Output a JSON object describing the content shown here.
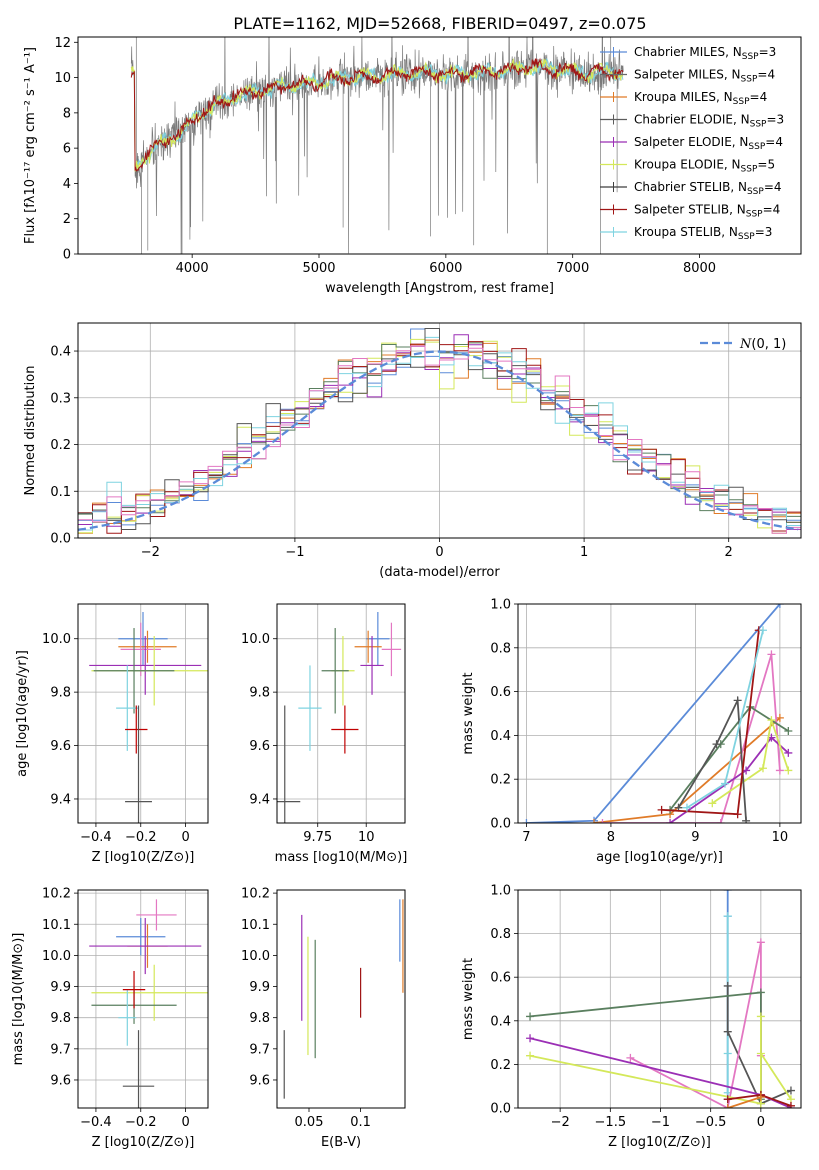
{
  "figure": {
    "title": "PLATE=1162, MJD=52668, FIBERID=0497, z=0.075"
  },
  "colors": {
    "fits": [
      "#5b8bd8",
      "#6a6a6a",
      "#e07b28",
      "#5c5c5c",
      "#9b2fb5",
      "#d4e85a",
      "#3f3f3f",
      "#a01616",
      "#7fd3e0"
    ]
  },
  "chart_data": [
    {
      "id": "spectrum",
      "type": "line",
      "title": "PLATE=1162, MJD=52668, FIBERID=0497, z=0.075",
      "xlabel": "wavelength [Angstrom, rest frame]",
      "ylabel": "Flux [fλ10⁻¹⁷ erg cm⁻² s⁻¹ A⁻¹]",
      "xlim": [
        3100,
        8800
      ],
      "ylim": [
        0,
        12.3
      ],
      "xticks": [
        4000,
        5000,
        6000,
        7000,
        8000
      ],
      "yticks": [
        0,
        2,
        4,
        6,
        8,
        10,
        12
      ],
      "grid": false,
      "legend_position": "top-right",
      "observed_range": [
        3520,
        7400
      ],
      "continuum": [
        [
          3550,
          4.8
        ],
        [
          3600,
          5.3
        ],
        [
          3700,
          6.0
        ],
        [
          3800,
          6.5
        ],
        [
          3900,
          6.8
        ],
        [
          4000,
          7.6
        ],
        [
          4100,
          8.1
        ],
        [
          4200,
          8.5
        ],
        [
          4300,
          8.8
        ],
        [
          4500,
          9.2
        ],
        [
          4700,
          9.5
        ],
        [
          5000,
          9.7
        ],
        [
          5200,
          10.0
        ],
        [
          5500,
          10.1
        ],
        [
          5800,
          10.3
        ],
        [
          6000,
          10.2
        ],
        [
          6300,
          10.3
        ],
        [
          6500,
          10.4
        ],
        [
          6600,
          10.6
        ],
        [
          6800,
          10.5
        ],
        [
          7000,
          10.4
        ],
        [
          7100,
          10.1
        ],
        [
          7200,
          10.4
        ],
        [
          7400,
          10.2
        ]
      ],
      "series": [
        {
          "name": "Chabrier MILES, N_SSP=3"
        },
        {
          "name": "Salpeter MILES, N_SSP=4"
        },
        {
          "name": "Kroupa MILES, N_SSP=4"
        },
        {
          "name": "Chabrier ELODIE, N_SSP=3"
        },
        {
          "name": "Salpeter ELODIE, N_SSP=4"
        },
        {
          "name": "Kroupa ELODIE, N_SSP=5"
        },
        {
          "name": "Chabrier STELIB, N_SSP=4"
        },
        {
          "name": "Salpeter STELIB, N_SSP=4"
        },
        {
          "name": "Kroupa STELIB, N_SSP=3"
        }
      ]
    },
    {
      "id": "residuals",
      "type": "step",
      "xlabel": "(data-model)/error",
      "ylabel": "Normed distribution",
      "xlim": [
        -2.5,
        2.5
      ],
      "ylim": [
        0,
        0.46
      ],
      "xticks": [
        -2,
        -1,
        0,
        1,
        2
      ],
      "yticks": [
        0.0,
        0.1,
        0.2,
        0.3,
        0.4
      ],
      "grid": true,
      "legend_position": "top-right",
      "reference_curve": {
        "name": "N(0,1)",
        "mean": 0,
        "sigma": 1
      }
    },
    {
      "id": "age-vs-Z",
      "type": "errorbar",
      "xlabel": "Z [log10(Z/Z⊙)]",
      "ylabel": "age  [log10(age/yr)]",
      "xlim": [
        -0.48,
        0.1
      ],
      "ylim": [
        9.31,
        10.13
      ],
      "xticks": [
        -0.4,
        -0.2,
        0.0
      ],
      "yticks": [
        9.4,
        9.6,
        9.8,
        10.0
      ],
      "grid": true,
      "points": [
        {
          "x": -0.19,
          "y": 10.0,
          "xerr": 0.11,
          "yerr": 0.1,
          "color": "#5b8bd8"
        },
        {
          "x": -0.17,
          "y": 9.97,
          "xerr": 0.13,
          "yerr": 0.06,
          "color": "#e07b28"
        },
        {
          "x": -0.2,
          "y": 9.96,
          "xerr": 0.09,
          "yerr": 0.1,
          "color": "#e377c2"
        },
        {
          "x": -0.18,
          "y": 9.9,
          "xerr": 0.25,
          "yerr": 0.11,
          "color": "#9b2fb5"
        },
        {
          "x": -0.14,
          "y": 9.88,
          "xerr": 0.28,
          "yerr": 0.13,
          "color": "#d4e85a"
        },
        {
          "x": -0.23,
          "y": 9.88,
          "xerr": 0.18,
          "yerr": 0.16,
          "color": "#5a7f5f"
        },
        {
          "x": -0.26,
          "y": 9.74,
          "xerr": 0.05,
          "yerr": 0.16,
          "color": "#7fd3e0"
        },
        {
          "x": -0.22,
          "y": 9.66,
          "xerr": 0.05,
          "yerr": 0.09,
          "color": "#c00000"
        },
        {
          "x": -0.21,
          "y": 9.39,
          "xerr": 0.06,
          "yerr": 0.36,
          "color": "#555555"
        }
      ]
    },
    {
      "id": "age-vs-mass",
      "type": "errorbar",
      "xlabel": "mass [log10(M/M⊙)]",
      "ylabel": "",
      "xlim": [
        9.54,
        10.2
      ],
      "ylim": [
        9.31,
        10.13
      ],
      "xticks": [
        9.75,
        10.0
      ],
      "yticks": [
        9.4,
        9.6,
        9.8,
        10.0
      ],
      "grid": true,
      "points": [
        {
          "x": 10.06,
          "y": 10.0,
          "xerr": 0.06,
          "yerr": 0.1,
          "color": "#5b8bd8"
        },
        {
          "x": 10.01,
          "y": 9.97,
          "xerr": 0.07,
          "yerr": 0.06,
          "color": "#e07b28"
        },
        {
          "x": 10.13,
          "y": 9.96,
          "xerr": 0.05,
          "yerr": 0.1,
          "color": "#e377c2"
        },
        {
          "x": 10.03,
          "y": 9.9,
          "xerr": 0.06,
          "yerr": 0.11,
          "color": "#9b2fb5"
        },
        {
          "x": 9.88,
          "y": 9.88,
          "xerr": 0.06,
          "yerr": 0.13,
          "color": "#d4e85a"
        },
        {
          "x": 9.84,
          "y": 9.88,
          "xerr": 0.07,
          "yerr": 0.16,
          "color": "#5a7f5f"
        },
        {
          "x": 9.71,
          "y": 9.74,
          "xerr": 0.06,
          "yerr": 0.16,
          "color": "#7fd3e0"
        },
        {
          "x": 9.89,
          "y": 9.66,
          "xerr": 0.07,
          "yerr": 0.09,
          "color": "#c00000"
        },
        {
          "x": 9.58,
          "y": 9.39,
          "xerr": 0.08,
          "yerr": 0.36,
          "color": "#555555"
        }
      ]
    },
    {
      "id": "mass-weight-vs-age",
      "type": "line",
      "xlabel": "age  [log10(age/yr)]",
      "ylabel": "mass weight",
      "xlim": [
        6.9,
        10.25
      ],
      "ylim": [
        0,
        1.0
      ],
      "xticks": [
        7,
        8,
        9,
        10
      ],
      "yticks": [
        0.0,
        0.2,
        0.4,
        0.6,
        0.8,
        1.0
      ],
      "grid": true,
      "series": [
        {
          "color": "#5b8bd8",
          "points": [
            [
              7.0,
              0.0
            ],
            [
              7.8,
              0.01
            ],
            [
              10.0,
              1.0
            ]
          ]
        },
        {
          "color": "#e07b28",
          "points": [
            [
              7.8,
              0.0
            ],
            [
              8.7,
              0.04
            ],
            [
              10.0,
              0.48
            ]
          ]
        },
        {
          "color": "#e377c2",
          "points": [
            [
              7.9,
              0.0
            ],
            [
              9.3,
              0.0
            ],
            [
              9.9,
              0.77
            ],
            [
              10.0,
              0.24
            ]
          ]
        },
        {
          "color": "#5a7f5f",
          "points": [
            [
              8.7,
              0.06
            ],
            [
              9.3,
              0.36
            ],
            [
              9.65,
              0.53
            ],
            [
              10.1,
              0.42
            ]
          ]
        },
        {
          "color": "#9b2fb5",
          "points": [
            [
              8.7,
              0.0
            ],
            [
              9.6,
              0.24
            ],
            [
              9.9,
              0.39
            ],
            [
              10.1,
              0.32
            ]
          ]
        },
        {
          "color": "#d4e85a",
          "points": [
            [
              9.2,
              0.09
            ],
            [
              9.8,
              0.25
            ],
            [
              9.9,
              0.47
            ],
            [
              10.1,
              0.24
            ]
          ]
        },
        {
          "color": "#555555",
          "points": [
            [
              8.8,
              0.07
            ],
            [
              9.25,
              0.36
            ],
            [
              9.5,
              0.56
            ],
            [
              9.6,
              0.01
            ]
          ]
        },
        {
          "color": "#a01616",
          "points": [
            [
              8.6,
              0.06
            ],
            [
              9.5,
              0.04
            ],
            [
              9.75,
              0.88
            ]
          ]
        },
        {
          "color": "#7fd3e0",
          "points": [
            [
              8.9,
              0.07
            ],
            [
              9.35,
              0.18
            ],
            [
              9.8,
              0.88
            ]
          ]
        }
      ]
    },
    {
      "id": "mass-vs-Z",
      "type": "errorbar",
      "xlabel": "Z [log10(Z/Z⊙)]",
      "ylabel": "mass [log10(M/M⊙)]",
      "xlim": [
        -0.48,
        0.1
      ],
      "ylim": [
        9.51,
        10.21
      ],
      "xticks": [
        -0.4,
        -0.2,
        0.0
      ],
      "yticks": [
        9.6,
        9.7,
        9.8,
        9.9,
        10.0,
        10.1,
        10.2
      ],
      "grid": true,
      "points": [
        {
          "x": -0.2,
          "y": 10.06,
          "xerr": 0.11,
          "yerr": 0.06,
          "color": "#5b8bd8"
        },
        {
          "x": -0.17,
          "y": 10.03,
          "xerr": 0.09,
          "yerr": 0.07,
          "color": "#e07b28"
        },
        {
          "x": -0.13,
          "y": 10.13,
          "xerr": 0.09,
          "yerr": 0.05,
          "color": "#e377c2"
        },
        {
          "x": -0.18,
          "y": 10.03,
          "xerr": 0.25,
          "yerr": 0.09,
          "color": "#9b2fb5"
        },
        {
          "x": -0.14,
          "y": 9.88,
          "xerr": 0.28,
          "yerr": 0.09,
          "color": "#d4e85a"
        },
        {
          "x": -0.23,
          "y": 9.84,
          "xerr": 0.19,
          "yerr": 0.06,
          "color": "#5a7f5f"
        },
        {
          "x": -0.26,
          "y": 9.8,
          "xerr": 0.04,
          "yerr": 0.09,
          "color": "#7fd3e0"
        },
        {
          "x": -0.23,
          "y": 9.89,
          "xerr": 0.05,
          "yerr": 0.06,
          "color": "#c00000"
        },
        {
          "x": -0.21,
          "y": 9.58,
          "xerr": 0.07,
          "yerr": 0.18,
          "color": "#555555"
        }
      ]
    },
    {
      "id": "mass-vs-EBV",
      "type": "errorbar",
      "xlabel": "E(B-V)",
      "ylabel": "",
      "xlim": [
        0.019,
        0.143
      ],
      "ylim": [
        9.51,
        10.21
      ],
      "xticks": [
        0.05,
        0.1
      ],
      "yticks": [
        9.6,
        9.7,
        9.8,
        9.9,
        10.0,
        10.1,
        10.2
      ],
      "grid": false,
      "points": [
        {
          "x": 0.138,
          "y": 10.08,
          "xerr": 0,
          "yerr": 0.1,
          "color": "#5b8bd8"
        },
        {
          "x": 0.141,
          "y": 10.03,
          "xerr": 0,
          "yerr": 0.15,
          "color": "#e07b28"
        },
        {
          "x": 0.043,
          "y": 9.96,
          "xerr": 0,
          "yerr": 0.17,
          "color": "#9b2fb5"
        },
        {
          "x": 0.049,
          "y": 9.87,
          "xerr": 0,
          "yerr": 0.19,
          "color": "#d4e85a"
        },
        {
          "x": 0.056,
          "y": 9.86,
          "xerr": 0,
          "yerr": 0.19,
          "color": "#5a7f5f"
        },
        {
          "x": 0.1,
          "y": 9.88,
          "xerr": 0,
          "yerr": 0.08,
          "color": "#a01616"
        },
        {
          "x": 0.026,
          "y": 9.65,
          "xerr": 0,
          "yerr": 0.11,
          "color": "#555555"
        }
      ]
    },
    {
      "id": "mass-weight-vs-Z",
      "type": "line",
      "xlabel": "Z [log10(Z/Z⊙)]",
      "ylabel": "mass weight",
      "xlim": [
        -2.42,
        0.4
      ],
      "ylim": [
        0,
        1.0
      ],
      "xticks": [
        -2.0,
        -1.5,
        -1.0,
        -0.5,
        0.0
      ],
      "yticks": [
        0.0,
        0.2,
        0.4,
        0.6,
        0.8,
        1.0
      ],
      "grid": true,
      "series": [
        {
          "color": "#5b8bd8",
          "points": [
            [
              -0.33,
              1.0
            ],
            [
              -0.33,
              0.88
            ],
            [
              -0.33,
              0.04
            ]
          ]
        },
        {
          "color": "#7fd3e0",
          "points": [
            [
              -0.33,
              0.88
            ],
            [
              -0.33,
              0.25
            ],
            [
              -0.33,
              0.07
            ]
          ]
        },
        {
          "color": "#555555",
          "points": [
            [
              -0.33,
              0.56
            ],
            [
              -0.33,
              0.35
            ],
            [
              0.0,
              0.02
            ],
            [
              0.3,
              0.08
            ]
          ]
        },
        {
          "color": "#e377c2",
          "points": [
            [
              -1.3,
              0.23
            ],
            [
              -0.33,
              0.0
            ],
            [
              0.0,
              0.76
            ],
            [
              0.0,
              0.06
            ],
            [
              0.0,
              0.24
            ]
          ]
        },
        {
          "color": "#5a7f5f",
          "points": [
            [
              -2.3,
              0.42
            ],
            [
              0.0,
              0.53
            ],
            [
              0.0,
              0.04
            ]
          ]
        },
        {
          "color": "#9b2fb5",
          "points": [
            [
              -2.3,
              0.32
            ],
            [
              0.0,
              0.06
            ],
            [
              0.3,
              0.0
            ]
          ]
        },
        {
          "color": "#d4e85a",
          "points": [
            [
              -2.3,
              0.24
            ],
            [
              0.0,
              0.02
            ],
            [
              0.0,
              0.42
            ],
            [
              0.0,
              0.25
            ],
            [
              0.3,
              0.04
            ]
          ]
        },
        {
          "color": "#a01616",
          "points": [
            [
              -0.33,
              0.04
            ],
            [
              0.0,
              0.06
            ],
            [
              0.3,
              0.01
            ]
          ]
        },
        {
          "color": "#e07b28",
          "points": [
            [
              -0.33,
              0.0
            ],
            [
              0.0,
              0.05
            ]
          ]
        }
      ]
    }
  ]
}
